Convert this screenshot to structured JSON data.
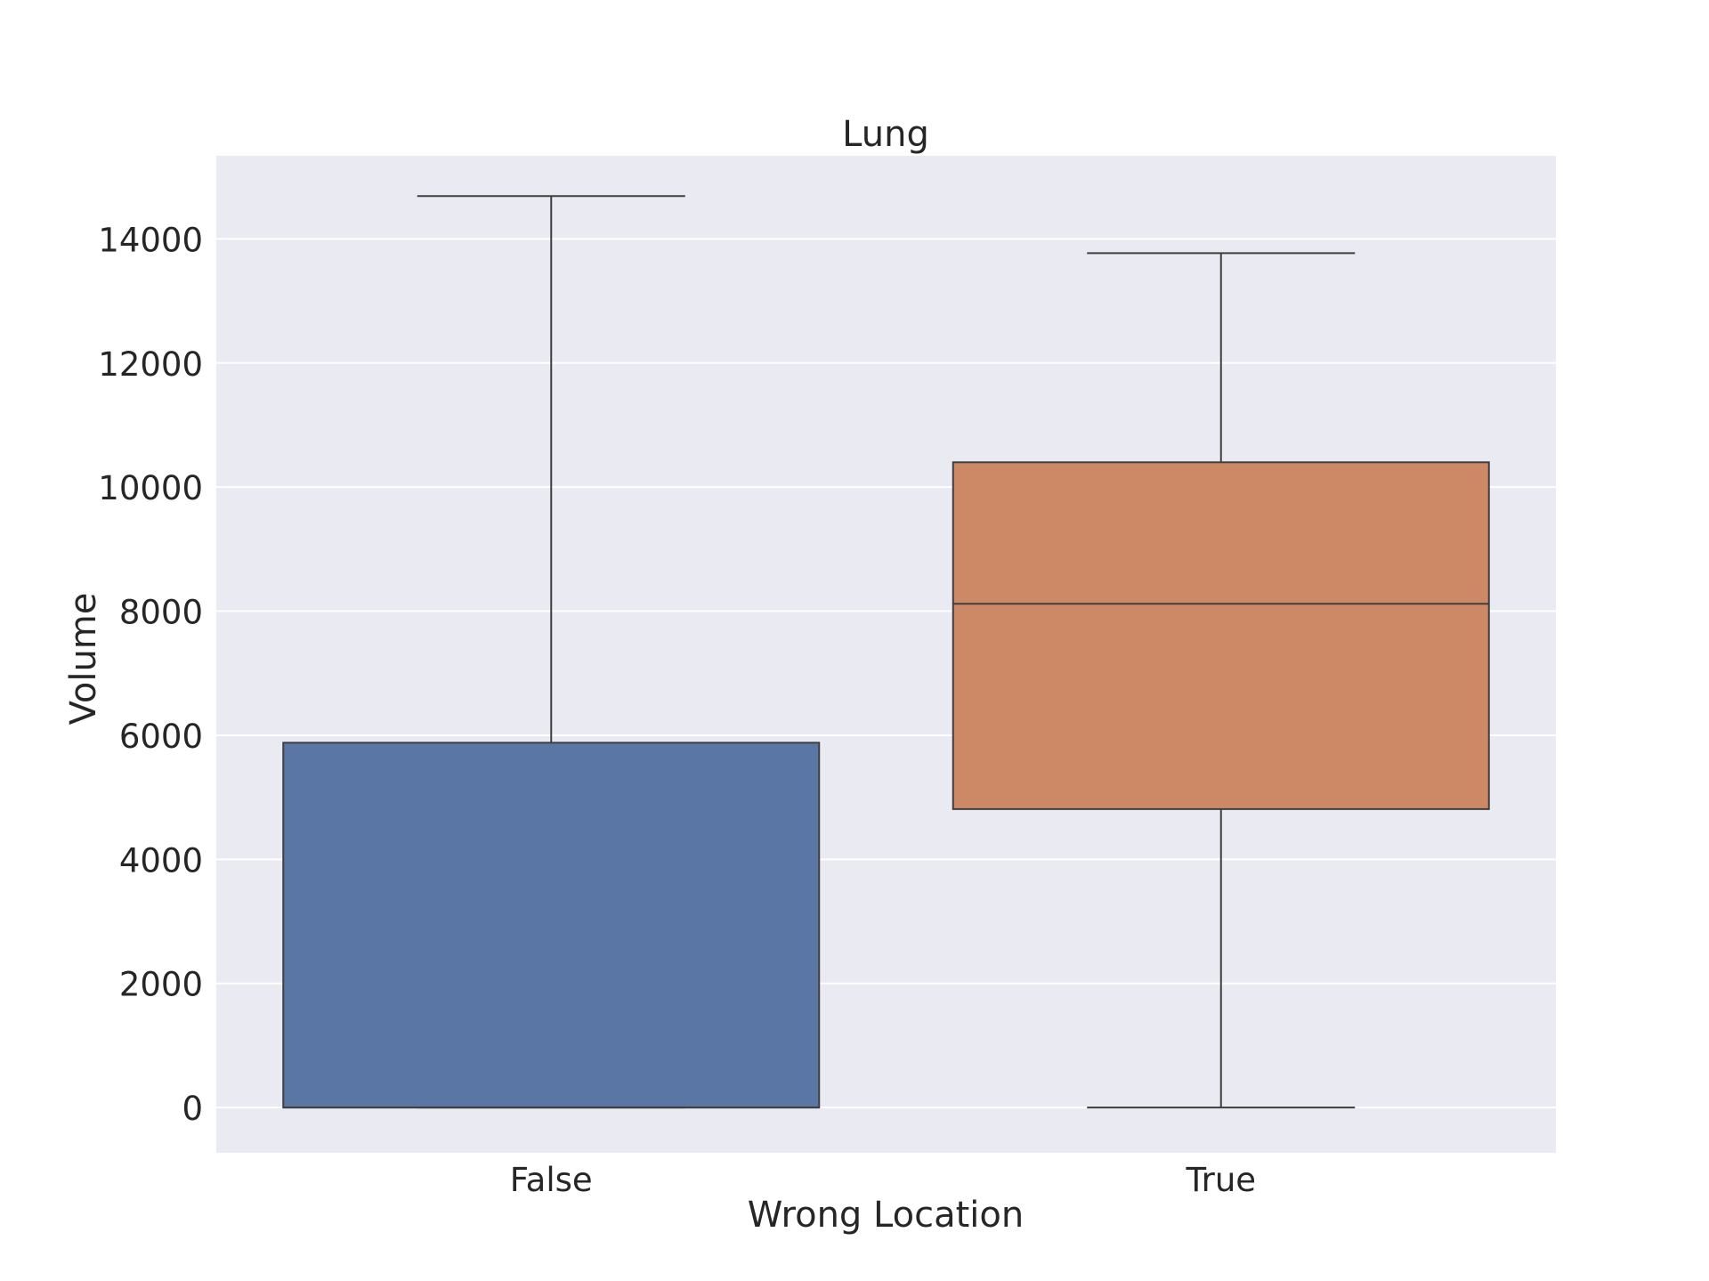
{
  "chart_data": {
    "type": "box",
    "title": "Lung",
    "xlabel": "Wrong Location",
    "ylabel": "Volume",
    "ylim": [
      -730,
      15340
    ],
    "yticks": [
      0,
      2000,
      4000,
      6000,
      8000,
      10000,
      12000,
      14000
    ],
    "categories": [
      "False",
      "True"
    ],
    "boxes": [
      {
        "category": "False",
        "whisker_low": 0,
        "q1": 0,
        "median": 0,
        "q3": 5880,
        "whisker_high": 14690,
        "color": "#5a76a4"
      },
      {
        "category": "True",
        "whisker_low": 0,
        "q1": 4810,
        "median": 8120,
        "q3": 10400,
        "whisker_high": 13770,
        "color": "#cd8865"
      }
    ],
    "grid": true,
    "background": "#eaeaf2",
    "line_color": "#3f3f3f"
  }
}
